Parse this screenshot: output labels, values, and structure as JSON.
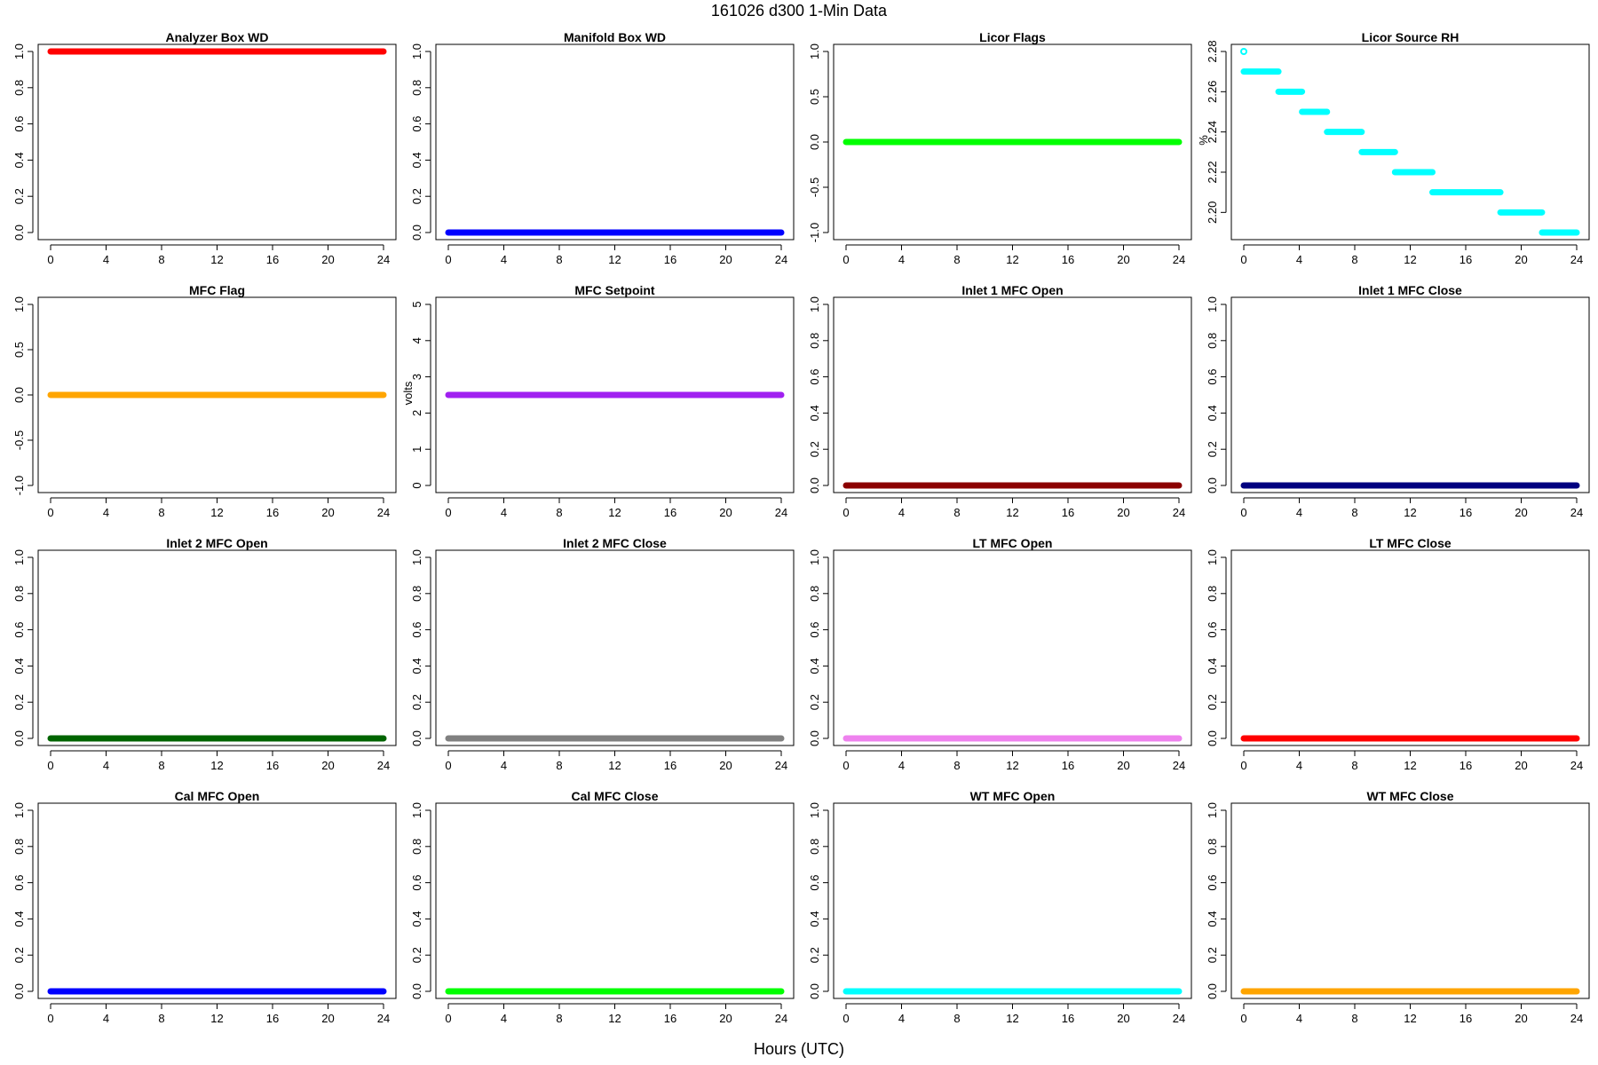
{
  "figure": {
    "title": "161026   d300   1-Min Data",
    "xlabel": "Hours (UTC)"
  },
  "chart_data": [
    {
      "type": "scatter",
      "title": "Analyzer Box WD",
      "ylabel": "",
      "color": "#ff0000",
      "xlim": [
        0,
        24
      ],
      "ylim": [
        0,
        1
      ],
      "xticks": [
        0,
        4,
        8,
        12,
        16,
        20,
        24
      ],
      "yticks": [
        "0.0",
        "0.2",
        "0.4",
        "0.6",
        "0.8",
        "1.0"
      ],
      "segments": [
        {
          "x": [
            0,
            24
          ],
          "y": 1
        }
      ]
    },
    {
      "type": "scatter",
      "title": "Manifold Box WD",
      "ylabel": "",
      "color": "#0000ff",
      "xlim": [
        0,
        24
      ],
      "ylim": [
        0,
        1
      ],
      "xticks": [
        0,
        4,
        8,
        12,
        16,
        20,
        24
      ],
      "yticks": [
        "0.0",
        "0.2",
        "0.4",
        "0.6",
        "0.8",
        "1.0"
      ],
      "segments": [
        {
          "x": [
            0,
            24
          ],
          "y": 0
        }
      ]
    },
    {
      "type": "scatter",
      "title": "Licor Flags",
      "ylabel": "",
      "color": "#00ff00",
      "xlim": [
        0,
        24
      ],
      "ylim": [
        -1,
        1
      ],
      "xticks": [
        0,
        4,
        8,
        12,
        16,
        20,
        24
      ],
      "yticks": [
        "-1.0",
        "-0.5",
        "0.0",
        "0.5",
        "1.0"
      ],
      "segments": [
        {
          "x": [
            0,
            24
          ],
          "y": 0
        }
      ]
    },
    {
      "type": "scatter",
      "title": "Licor Source RH",
      "ylabel": "%",
      "color": "#00ffff",
      "xlim": [
        0,
        24
      ],
      "ylim": [
        2.19,
        2.28
      ],
      "xticks": [
        0,
        4,
        8,
        12,
        16,
        20,
        24
      ],
      "yticks": [
        "2.20",
        "2.22",
        "2.24",
        "2.26",
        "2.28"
      ],
      "segments": [
        {
          "x": [
            0,
            0
          ],
          "y": 2.28
        },
        {
          "x": [
            0,
            2.5
          ],
          "y": 2.27
        },
        {
          "x": [
            2.5,
            4.2
          ],
          "y": 2.26
        },
        {
          "x": [
            4.2,
            6.0
          ],
          "y": 2.25
        },
        {
          "x": [
            6.0,
            8.5
          ],
          "y": 2.24
        },
        {
          "x": [
            8.5,
            10.9
          ],
          "y": 2.23
        },
        {
          "x": [
            10.9,
            13.6
          ],
          "y": 2.22
        },
        {
          "x": [
            13.6,
            18.5
          ],
          "y": 2.21
        },
        {
          "x": [
            18.5,
            21.5
          ],
          "y": 2.2
        },
        {
          "x": [
            21.5,
            24
          ],
          "y": 2.19
        }
      ]
    },
    {
      "type": "scatter",
      "title": "MFC Flag",
      "ylabel": "",
      "color": "#ffa500",
      "xlim": [
        0,
        24
      ],
      "ylim": [
        -1,
        1
      ],
      "xticks": [
        0,
        4,
        8,
        12,
        16,
        20,
        24
      ],
      "yticks": [
        "-1.0",
        "-0.5",
        "0.0",
        "0.5",
        "1.0"
      ],
      "segments": [
        {
          "x": [
            0,
            24
          ],
          "y": 0
        }
      ]
    },
    {
      "type": "scatter",
      "title": "MFC Setpoint",
      "ylabel": "volts",
      "color": "#a020f0",
      "xlim": [
        0,
        24
      ],
      "ylim": [
        0,
        5
      ],
      "xticks": [
        0,
        4,
        8,
        12,
        16,
        20,
        24
      ],
      "yticks": [
        "0",
        "1",
        "2",
        "3",
        "4",
        "5"
      ],
      "segments": [
        {
          "x": [
            0,
            24
          ],
          "y": 2.5
        }
      ]
    },
    {
      "type": "scatter",
      "title": "Inlet 1 MFC Open",
      "ylabel": "",
      "color": "#8b0000",
      "xlim": [
        0,
        24
      ],
      "ylim": [
        0,
        1
      ],
      "xticks": [
        0,
        4,
        8,
        12,
        16,
        20,
        24
      ],
      "yticks": [
        "0.0",
        "0.2",
        "0.4",
        "0.6",
        "0.8",
        "1.0"
      ],
      "segments": [
        {
          "x": [
            0,
            24
          ],
          "y": 0
        }
      ]
    },
    {
      "type": "scatter",
      "title": "Inlet 1 MFC Close",
      "ylabel": "",
      "color": "#000080",
      "xlim": [
        0,
        24
      ],
      "ylim": [
        0,
        1
      ],
      "xticks": [
        0,
        4,
        8,
        12,
        16,
        20,
        24
      ],
      "yticks": [
        "0.0",
        "0.2",
        "0.4",
        "0.6",
        "0.8",
        "1.0"
      ],
      "segments": [
        {
          "x": [
            0,
            24
          ],
          "y": 0
        }
      ]
    },
    {
      "type": "scatter",
      "title": "Inlet 2 MFC Open",
      "ylabel": "",
      "color": "#006400",
      "xlim": [
        0,
        24
      ],
      "ylim": [
        0,
        1
      ],
      "xticks": [
        0,
        4,
        8,
        12,
        16,
        20,
        24
      ],
      "yticks": [
        "0.0",
        "0.2",
        "0.4",
        "0.6",
        "0.8",
        "1.0"
      ],
      "segments": [
        {
          "x": [
            0,
            24
          ],
          "y": 0
        }
      ]
    },
    {
      "type": "scatter",
      "title": "Inlet 2 MFC Close",
      "ylabel": "",
      "color": "#808080",
      "xlim": [
        0,
        24
      ],
      "ylim": [
        0,
        1
      ],
      "xticks": [
        0,
        4,
        8,
        12,
        16,
        20,
        24
      ],
      "yticks": [
        "0.0",
        "0.2",
        "0.4",
        "0.6",
        "0.8",
        "1.0"
      ],
      "segments": [
        {
          "x": [
            0,
            24
          ],
          "y": 0
        }
      ]
    },
    {
      "type": "scatter",
      "title": "LT MFC Open",
      "ylabel": "",
      "color": "#ee82ee",
      "xlim": [
        0,
        24
      ],
      "ylim": [
        0,
        1
      ],
      "xticks": [
        0,
        4,
        8,
        12,
        16,
        20,
        24
      ],
      "yticks": [
        "0.0",
        "0.2",
        "0.4",
        "0.6",
        "0.8",
        "1.0"
      ],
      "segments": [
        {
          "x": [
            0,
            24
          ],
          "y": 0
        }
      ]
    },
    {
      "type": "scatter",
      "title": "LT MFC Close",
      "ylabel": "",
      "color": "#ff0000",
      "xlim": [
        0,
        24
      ],
      "ylim": [
        0,
        1
      ],
      "xticks": [
        0,
        4,
        8,
        12,
        16,
        20,
        24
      ],
      "yticks": [
        "0.0",
        "0.2",
        "0.4",
        "0.6",
        "0.8",
        "1.0"
      ],
      "segments": [
        {
          "x": [
            0,
            24
          ],
          "y": 0
        }
      ]
    },
    {
      "type": "scatter",
      "title": "Cal MFC Open",
      "ylabel": "",
      "color": "#0000ff",
      "xlim": [
        0,
        24
      ],
      "ylim": [
        0,
        1
      ],
      "xticks": [
        0,
        4,
        8,
        12,
        16,
        20,
        24
      ],
      "yticks": [
        "0.0",
        "0.2",
        "0.4",
        "0.6",
        "0.8",
        "1.0"
      ],
      "segments": [
        {
          "x": [
            0,
            24
          ],
          "y": 0
        }
      ]
    },
    {
      "type": "scatter",
      "title": "Cal MFC Close",
      "ylabel": "",
      "color": "#00ff00",
      "xlim": [
        0,
        24
      ],
      "ylim": [
        0,
        1
      ],
      "xticks": [
        0,
        4,
        8,
        12,
        16,
        20,
        24
      ],
      "yticks": [
        "0.0",
        "0.2",
        "0.4",
        "0.6",
        "0.8",
        "1.0"
      ],
      "segments": [
        {
          "x": [
            0,
            24
          ],
          "y": 0
        }
      ]
    },
    {
      "type": "scatter",
      "title": "WT MFC Open",
      "ylabel": "",
      "color": "#00ffff",
      "xlim": [
        0,
        24
      ],
      "ylim": [
        0,
        1
      ],
      "xticks": [
        0,
        4,
        8,
        12,
        16,
        20,
        24
      ],
      "yticks": [
        "0.0",
        "0.2",
        "0.4",
        "0.6",
        "0.8",
        "1.0"
      ],
      "segments": [
        {
          "x": [
            0,
            24
          ],
          "y": 0
        }
      ]
    },
    {
      "type": "scatter",
      "title": "WT MFC Close",
      "ylabel": "",
      "color": "#ffa500",
      "xlim": [
        0,
        24
      ],
      "ylim": [
        0,
        1
      ],
      "xticks": [
        0,
        4,
        8,
        12,
        16,
        20,
        24
      ],
      "yticks": [
        "0.0",
        "0.2",
        "0.4",
        "0.6",
        "0.8",
        "1.0"
      ],
      "segments": [
        {
          "x": [
            0,
            24
          ],
          "y": 0
        }
      ]
    }
  ]
}
